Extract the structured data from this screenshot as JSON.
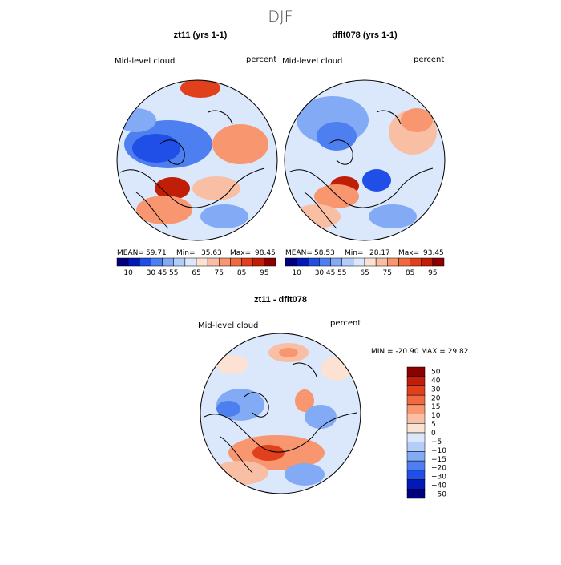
{
  "figure": {
    "season": "DJF",
    "colors": {
      "scale": [
        "#00007f",
        "#0019b8",
        "#1f4fe6",
        "#4d7ff0",
        "#82aaf5",
        "#b3cdf8",
        "#dbe7fb",
        "#fbe2d3",
        "#f9bfa4",
        "#f7966f",
        "#ef6a3f",
        "#e0401b",
        "#c01e06",
        "#8b0000"
      ]
    },
    "panels": [
      {
        "title": "zt11 (yrs 1-1)",
        "variable": "Mid-level cloud",
        "units": "percent",
        "stats": {
          "mean_label": "MEAN=",
          "mean": "59.71",
          "min_label": "Min=",
          "min": "35.63",
          "max_label": "Max=",
          "max": "98.45"
        }
      },
      {
        "title": "dflt078 (yrs 1-1)",
        "variable": "Mid-level cloud",
        "units": "percent",
        "stats": {
          "mean_label": "MEAN=",
          "mean": "58.53",
          "min_label": "Min=",
          "min": "28.17",
          "max_label": "Max=",
          "max": "93.45"
        }
      }
    ],
    "colorbar_top": {
      "ticks": [
        "10",
        "30",
        "45",
        "55",
        "65",
        "75",
        "85",
        "95"
      ]
    },
    "diff": {
      "title": "zt11 - dflt078",
      "variable": "Mid-level cloud",
      "units": "percent",
      "minmax": "MIN = -20.90 MAX =   29.82",
      "ticks": [
        "50",
        "40",
        "30",
        "20",
        "15",
        "10",
        "5",
        "0",
        "-5",
        "-10",
        "-15",
        "-20",
        "-30",
        "-40",
        "-50"
      ]
    }
  }
}
